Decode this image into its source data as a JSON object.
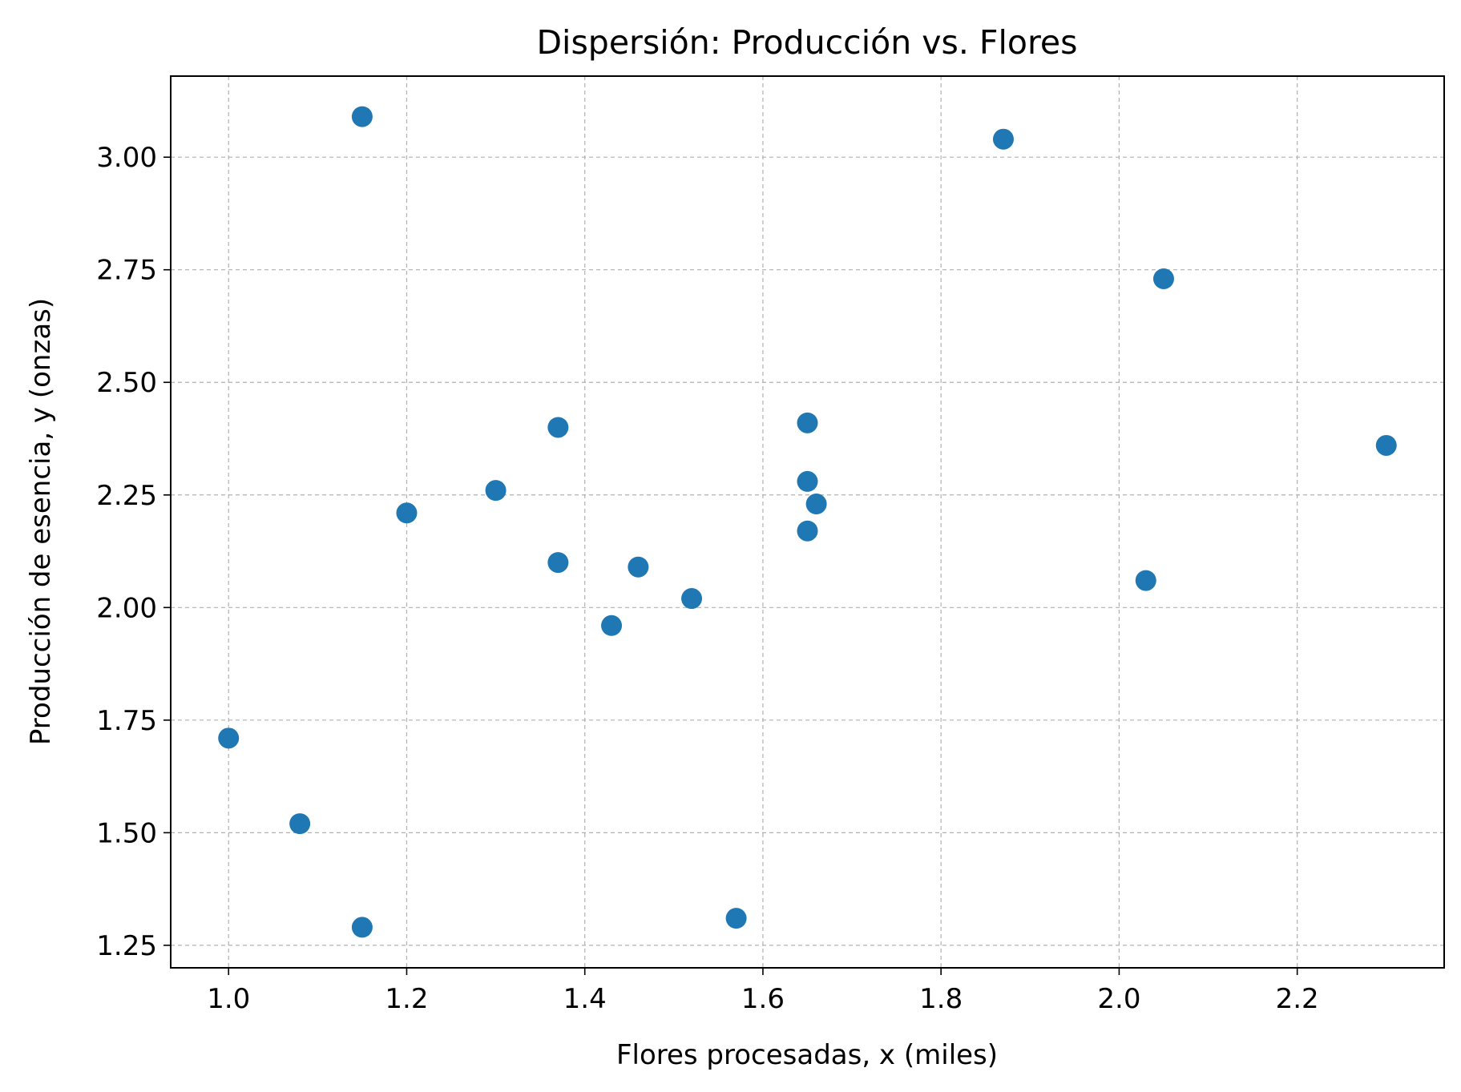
{
  "chart_data": {
    "type": "scatter",
    "title": "Dispersión: Producción vs. Flores",
    "xlabel": "Flores procesadas, x (miles)",
    "ylabel": "Producción de esencia, y (onzas)",
    "xlim": [
      0.935,
      2.365
    ],
    "ylim": [
      1.2,
      3.18
    ],
    "x_ticks": [
      1.0,
      1.2,
      1.4,
      1.6,
      1.8,
      2.0,
      2.2
    ],
    "x_tick_labels": [
      "1.0",
      "1.2",
      "1.4",
      "1.6",
      "1.8",
      "2.0",
      "2.2"
    ],
    "y_ticks": [
      1.25,
      1.5,
      1.75,
      2.0,
      2.25,
      2.5,
      2.75,
      3.0
    ],
    "y_tick_labels": [
      "1.25",
      "1.50",
      "1.75",
      "2.00",
      "2.25",
      "2.50",
      "2.75",
      "3.00"
    ],
    "grid": true,
    "marker_color": "#1f77b4",
    "points": [
      {
        "x": 1.15,
        "y": 3.09
      },
      {
        "x": 1.87,
        "y": 3.04
      },
      {
        "x": 2.05,
        "y": 2.73
      },
      {
        "x": 1.37,
        "y": 2.4
      },
      {
        "x": 1.65,
        "y": 2.41
      },
      {
        "x": 2.3,
        "y": 2.36
      },
      {
        "x": 1.3,
        "y": 2.26
      },
      {
        "x": 1.65,
        "y": 2.28
      },
      {
        "x": 1.66,
        "y": 2.23
      },
      {
        "x": 1.2,
        "y": 2.21
      },
      {
        "x": 1.65,
        "y": 2.17
      },
      {
        "x": 1.37,
        "y": 2.1
      },
      {
        "x": 1.46,
        "y": 2.09
      },
      {
        "x": 2.03,
        "y": 2.06
      },
      {
        "x": 1.52,
        "y": 2.02
      },
      {
        "x": 1.43,
        "y": 1.96
      },
      {
        "x": 1.0,
        "y": 1.71
      },
      {
        "x": 1.08,
        "y": 1.52
      },
      {
        "x": 1.15,
        "y": 1.29
      },
      {
        "x": 1.57,
        "y": 1.31
      }
    ]
  }
}
